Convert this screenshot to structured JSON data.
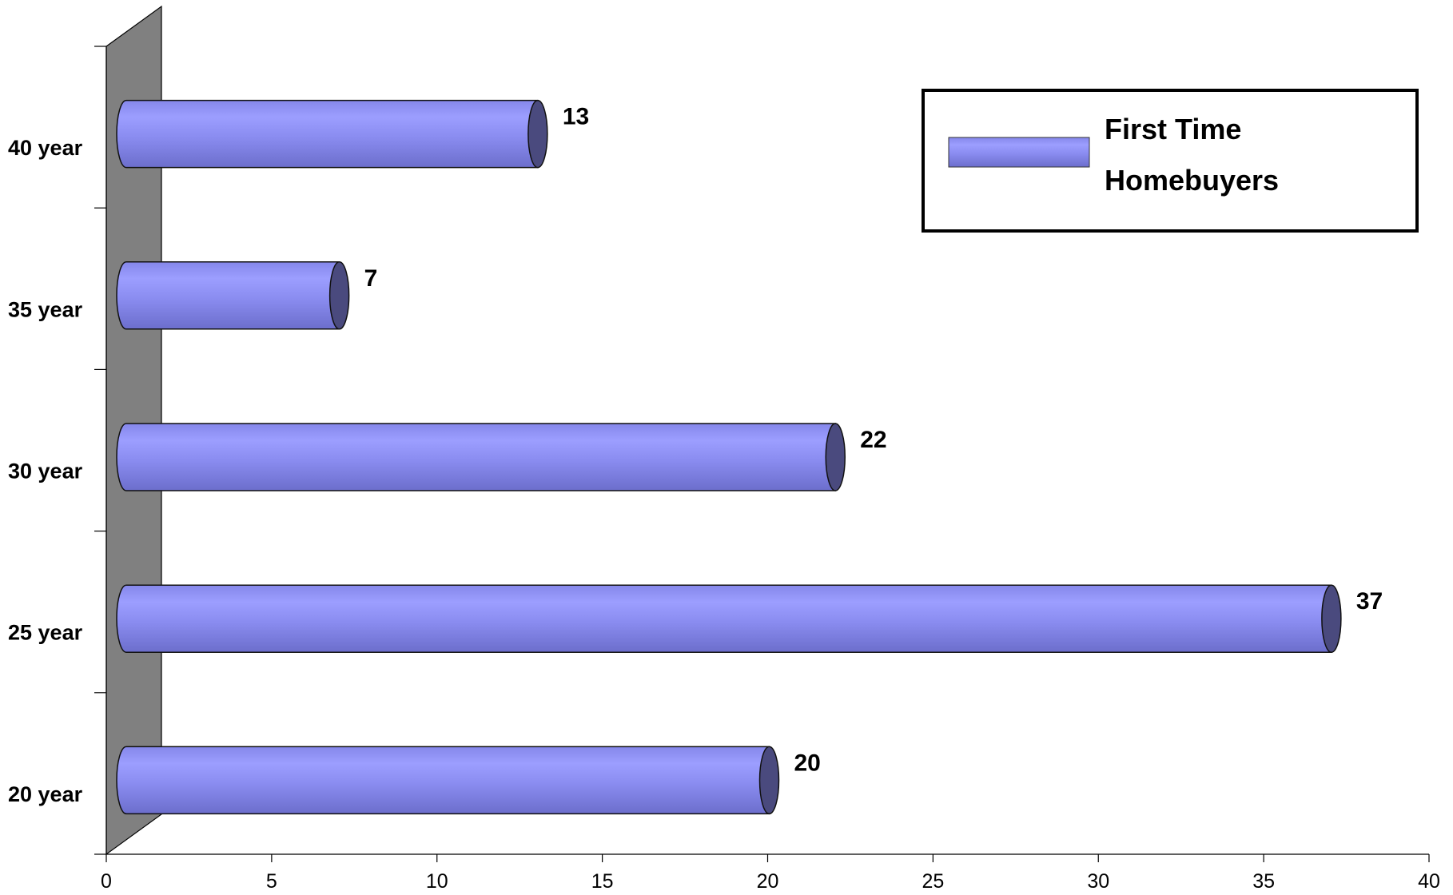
{
  "chart_data": {
    "type": "bar",
    "orientation": "horizontal",
    "style": "3d-cylinder",
    "categories": [
      "20 year",
      "25 year",
      "30 year",
      "35 year",
      "40 year"
    ],
    "series": [
      {
        "name": "First Time Homebuyers",
        "values": [
          20,
          37,
          22,
          7,
          13
        ]
      }
    ],
    "data_labels": [
      "20",
      "37",
      "22",
      "7",
      "13"
    ],
    "xlim": [
      0,
      40
    ],
    "x_ticks": [
      0,
      5,
      10,
      15,
      20,
      25,
      30,
      35,
      40
    ],
    "x_tick_labels": [
      "0",
      "5",
      "10",
      "15",
      "20",
      "25",
      "30",
      "35",
      "40"
    ],
    "legend": {
      "position": "top-right",
      "lines": [
        "First Time",
        "Homebuyers"
      ]
    },
    "grid": false,
    "colors": {
      "bar_light": "#9a9cff",
      "bar_mid": "#8486e8",
      "bar_dark": "#6a6cc8",
      "bar_cap": "#4a4a7e",
      "wall": "#808080",
      "axis": "#000000"
    }
  }
}
